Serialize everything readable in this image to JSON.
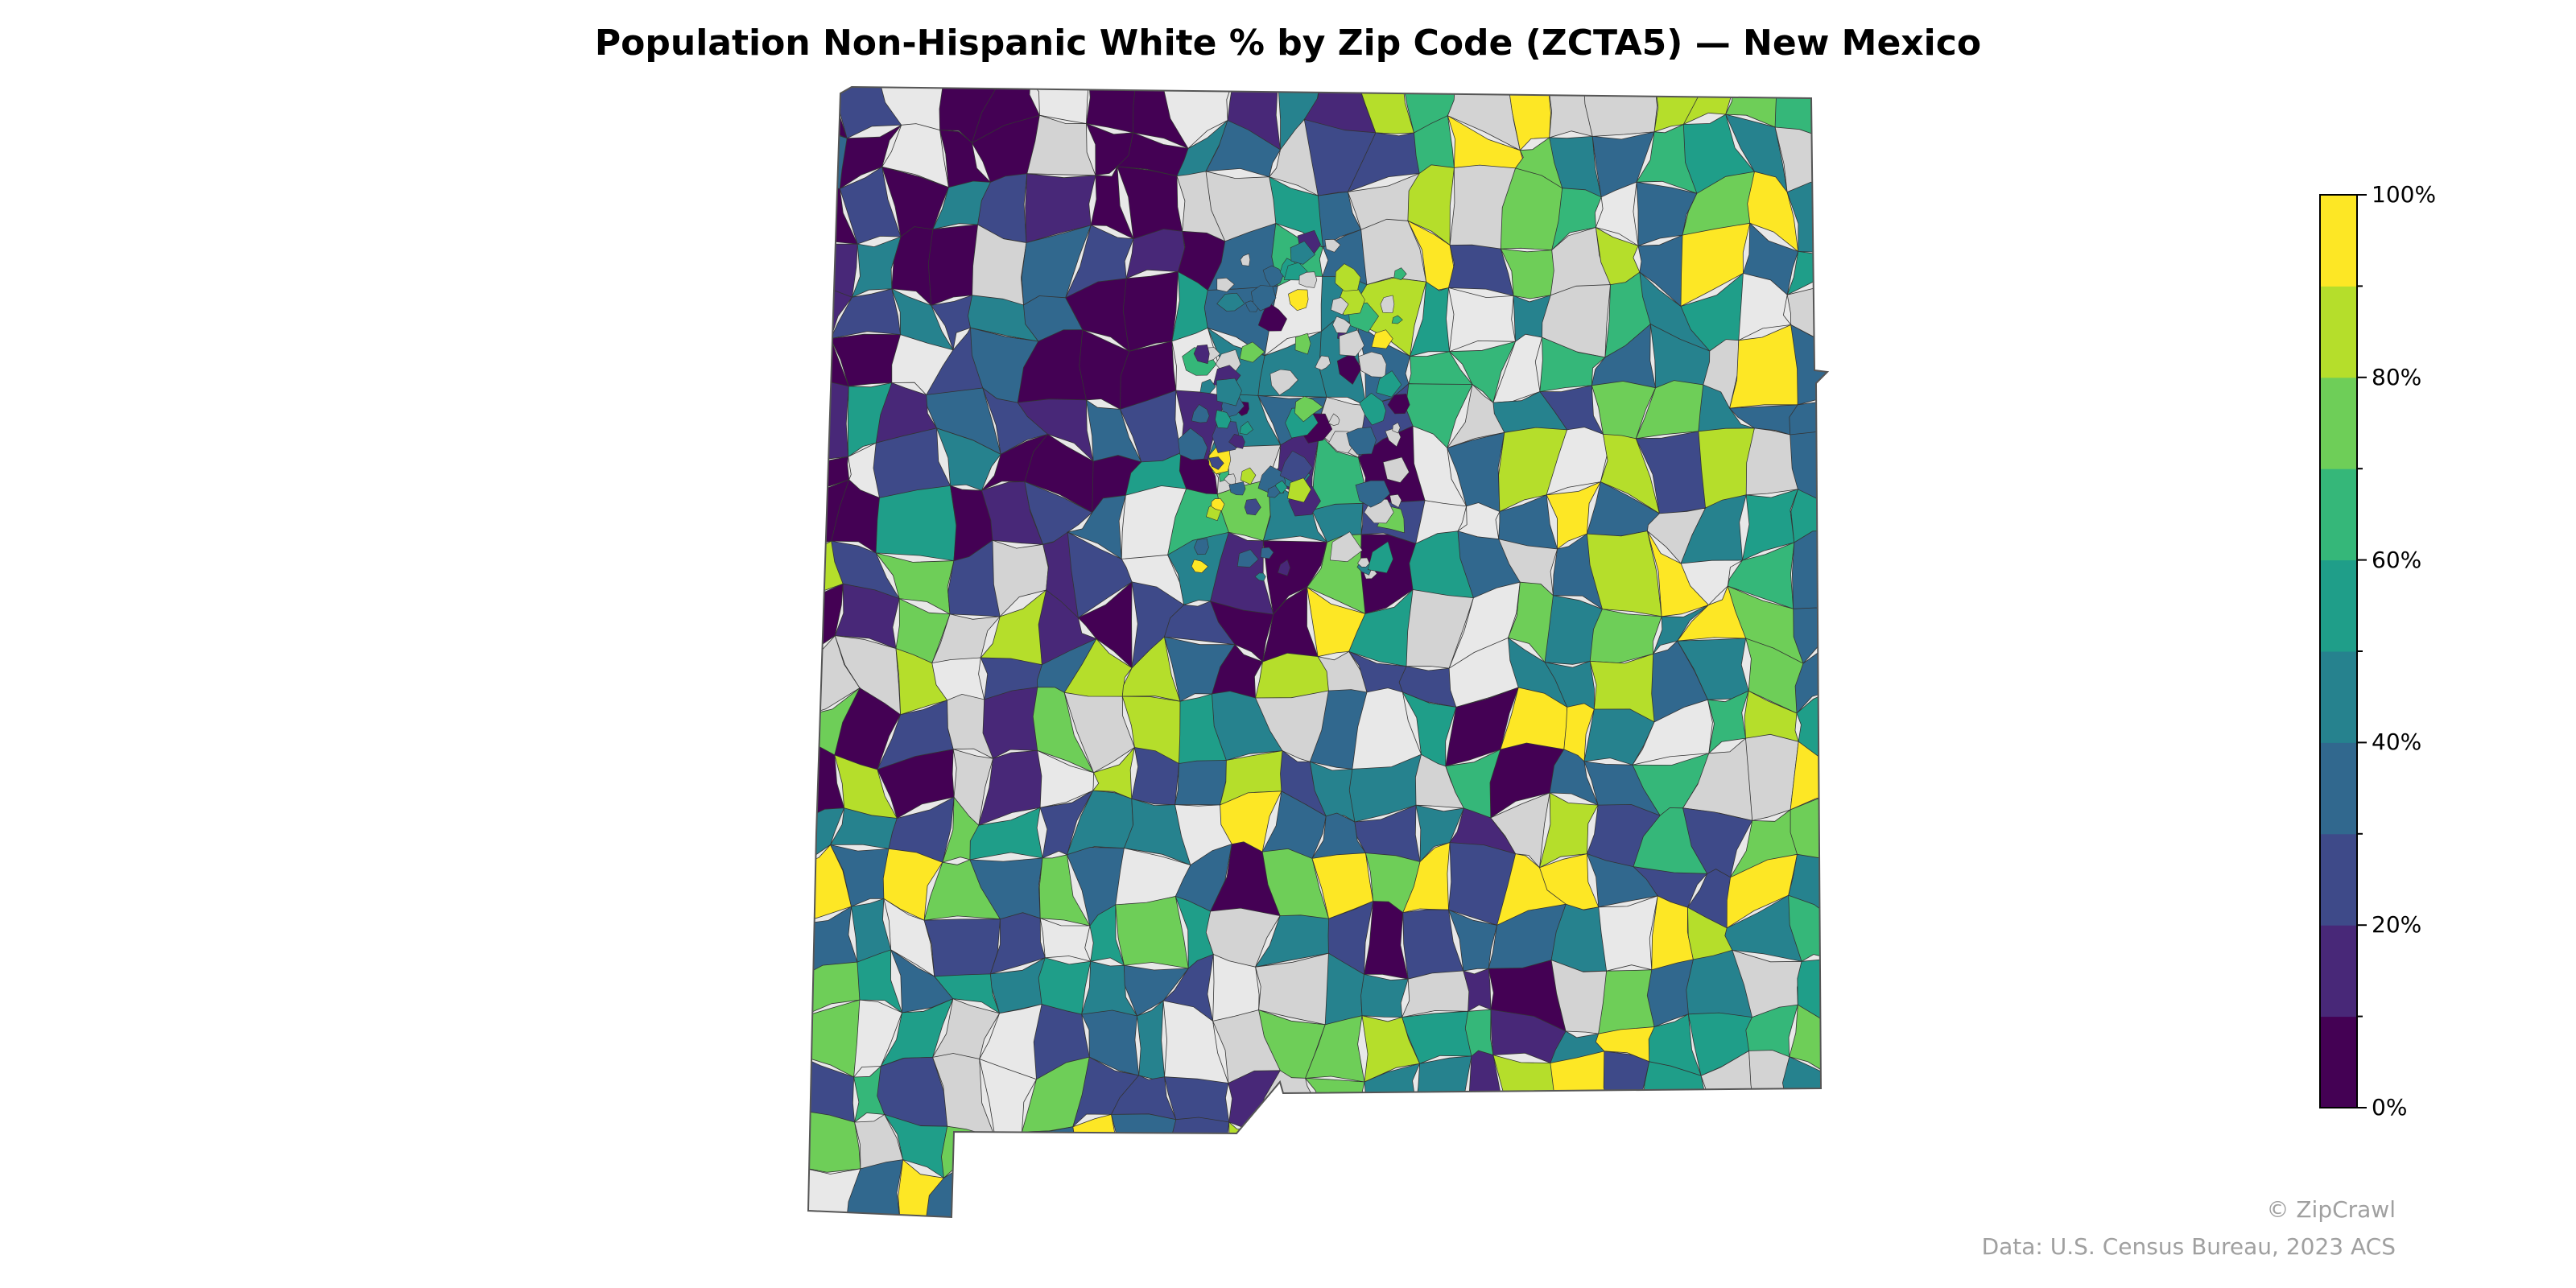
{
  "title": "Population Non-Hispanic White % by Zip Code (ZCTA5) — New Mexico",
  "colorbar": {
    "tick_labels": [
      "0%",
      "20%",
      "40%",
      "60%",
      "80%",
      "100%"
    ],
    "bins": 10,
    "colors": [
      "#440154",
      "#482878",
      "#3e4a89",
      "#31688e",
      "#26828e",
      "#1f9e89",
      "#35b779",
      "#6ece58",
      "#b5de2b",
      "#fde725"
    ],
    "no_data_colors": [
      "#d3d3d3",
      "#e8e8e8"
    ]
  },
  "credits": {
    "copyright": "© ZipCrawl",
    "source": "Data: U.S. Census Bureau, 2023 ACS"
  },
  "map_data": {
    "type": "choropleth",
    "region": "New Mexico",
    "unit": "ZCTA5",
    "range": [
      0,
      100
    ]
  }
}
